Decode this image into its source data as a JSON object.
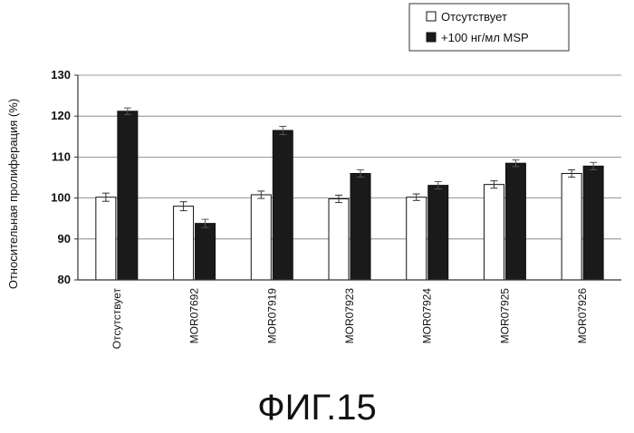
{
  "figure": {
    "caption": "ФИГ.15"
  },
  "chart_data": {
    "type": "bar",
    "title": "",
    "xlabel": "",
    "ylabel": "Относительная пролиферация (%)",
    "ylim": [
      80,
      130
    ],
    "yticks": [
      80,
      90,
      100,
      110,
      120,
      130
    ],
    "grid": true,
    "legend_position": "top-right",
    "categories": [
      "Отсутствует",
      "MOR07692",
      "MOR07919",
      "MOR07923",
      "MOR07924",
      "MOR07925",
      "MOR07926"
    ],
    "series": [
      {
        "name": "Отсутствует",
        "color": "#ffffff",
        "values": [
          100.2,
          98.0,
          100.8,
          99.8,
          100.2,
          103.3,
          106.0
        ],
        "errors": [
          1.0,
          1.1,
          0.9,
          0.9,
          0.8,
          0.9,
          0.9
        ]
      },
      {
        "name": "+100 нг/мл MSP",
        "color": "#1a1a1a",
        "values": [
          121.2,
          93.8,
          116.5,
          106.0,
          103.1,
          108.5,
          107.8
        ],
        "errors": [
          0.8,
          1.0,
          1.0,
          0.9,
          0.9,
          0.8,
          0.9
        ]
      }
    ]
  }
}
